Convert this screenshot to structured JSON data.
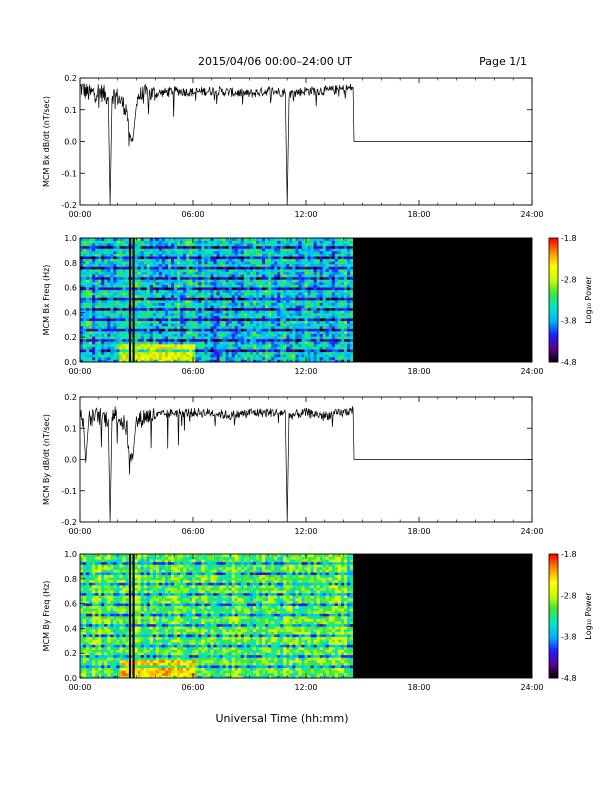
{
  "header": {
    "title": "2015/04/06  00:00–24:00 UT",
    "page": "Page 1/1"
  },
  "x_axis": {
    "title": "Universal Time (hh:mm)",
    "ticks": [
      "00:00",
      "06:00",
      "12:00",
      "18:00",
      "24:00"
    ],
    "range_hours": [
      0,
      24
    ]
  },
  "colorbar": {
    "label": "Log₁₀ Power",
    "ticks": [
      "-1.8",
      "-2.8",
      "-3.8",
      "-4.8"
    ],
    "range": [
      -4.8,
      -1.8
    ],
    "colormap": [
      "#000000",
      "#5a008c",
      "#1e1eff",
      "#00b4ff",
      "#00e6c8",
      "#3ce63c",
      "#c8ff00",
      "#ffff00",
      "#ff8c00",
      "#ff0000"
    ]
  },
  "chart_data": [
    {
      "type": "line",
      "panel": "bx-dbdt",
      "ylabel": "MCM Bx dB/dt (nT/sec)",
      "ylim": [
        -0.2,
        0.2
      ],
      "yticks": [
        "0.2",
        "0.1",
        "0.0",
        "-0.1",
        "-0.2"
      ],
      "series": [
        {
          "x": [
            0,
            0.5,
            1.0,
            1.5,
            1.6,
            1.7,
            2.0,
            2.5,
            2.6,
            2.8,
            3.0,
            3.5,
            4.0,
            5.0,
            6.0,
            7.0,
            8.0,
            9.0,
            10.0,
            10.9,
            11.0,
            11.1,
            12.0,
            13.0,
            14.0,
            14.5,
            14.55,
            24.0
          ],
          "y": [
            0.17,
            0.15,
            0.16,
            0.14,
            -0.2,
            0.15,
            0.14,
            0.1,
            0.0,
            0.0,
            0.14,
            0.15,
            0.15,
            0.16,
            0.155,
            0.16,
            0.155,
            0.15,
            0.16,
            0.155,
            -0.2,
            0.15,
            0.16,
            0.16,
            0.165,
            0.17,
            0.0,
            0.0
          ]
        }
      ]
    },
    {
      "type": "heatmap",
      "panel": "bx-spectrogram",
      "ylabel": "MCM Bx Freq (Hz)",
      "ylim": [
        0.0,
        1.0
      ],
      "yticks": [
        "1.0",
        "0.8",
        "0.6",
        "0.4",
        "0.2",
        "0.0"
      ],
      "data_end_hour": 14.5,
      "gap_hours": [
        2.6,
        2.9
      ],
      "z_typical": -3.6,
      "z_low_freq_enhanced": -2.6
    },
    {
      "type": "line",
      "panel": "by-dbdt",
      "ylabel": "MCM By dB/dt (nT/sec)",
      "ylim": [
        -0.2,
        0.2
      ],
      "yticks": [
        "0.2",
        "0.1",
        "0.0",
        "-0.1",
        "-0.2"
      ],
      "series": [
        {
          "x": [
            0,
            0.2,
            0.3,
            0.5,
            1.0,
            1.5,
            1.6,
            1.7,
            2.0,
            2.5,
            2.6,
            2.8,
            3.0,
            3.5,
            4.0,
            5.0,
            6.0,
            7.0,
            8.0,
            9.0,
            10.0,
            10.9,
            11.0,
            11.1,
            12.0,
            13.0,
            14.0,
            14.5,
            14.55,
            24.0
          ],
          "y": [
            0.15,
            0.1,
            -0.01,
            0.13,
            0.14,
            0.13,
            -0.2,
            0.15,
            0.14,
            0.1,
            0.0,
            0.0,
            0.12,
            0.14,
            0.14,
            0.15,
            0.15,
            0.15,
            0.14,
            0.15,
            0.15,
            0.15,
            -0.2,
            0.14,
            0.15,
            0.14,
            0.15,
            0.16,
            0.0,
            0.0
          ]
        }
      ]
    },
    {
      "type": "heatmap",
      "panel": "by-spectrogram",
      "ylabel": "MCM By Freq (Hz)",
      "ylim": [
        0.0,
        1.0
      ],
      "yticks": [
        "1.0",
        "0.8",
        "0.6",
        "0.4",
        "0.2",
        "0.0"
      ],
      "data_end_hour": 14.5,
      "gap_hours": [
        2.6,
        2.9
      ],
      "z_typical": -3.1,
      "z_low_freq_enhanced": -2.4
    }
  ]
}
